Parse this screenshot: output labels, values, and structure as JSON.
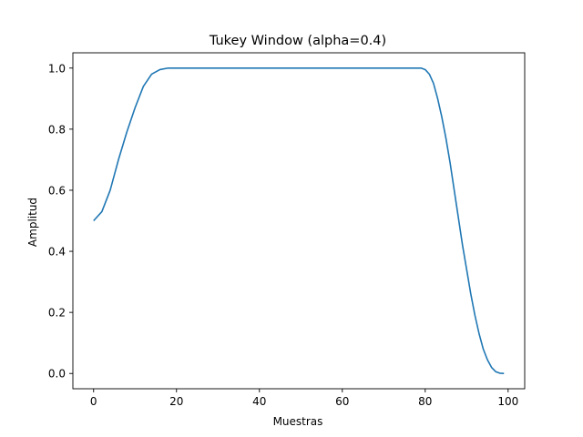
{
  "chart_data": {
    "type": "line",
    "title": "Tukey Window (alpha=0.4)",
    "xlabel": "Muestras",
    "ylabel": "Amplitud",
    "xlim": [
      -5,
      104
    ],
    "ylim": [
      -0.05,
      1.05
    ],
    "x_ticks": [
      0,
      20,
      40,
      60,
      80,
      100
    ],
    "x_tick_labels": [
      "0",
      "20",
      "40",
      "60",
      "80",
      "100"
    ],
    "y_ticks": [
      0.0,
      0.2,
      0.4,
      0.6,
      0.8,
      1.0
    ],
    "y_tick_labels": [
      "0.0",
      "0.2",
      "0.4",
      "0.6",
      "0.8",
      "1.0"
    ],
    "grid": false,
    "legend": "none",
    "series": [
      {
        "color": "#1f77b4",
        "x": [
          0,
          2,
          4,
          6,
          8,
          10,
          12,
          14,
          16,
          18,
          19,
          20,
          30,
          40,
          50,
          60,
          70,
          79,
          80,
          81,
          82,
          83,
          84,
          85,
          86,
          87,
          88,
          89,
          90,
          91,
          92,
          93,
          94,
          95,
          96,
          97,
          98,
          99
        ],
        "y": [
          0.5,
          0.53,
          0.6,
          0.7,
          0.79,
          0.87,
          0.94,
          0.98,
          0.995,
          1.0,
          1.0,
          1.0,
          1.0,
          1.0,
          1.0,
          1.0,
          1.0,
          1.0,
          0.995,
          0.98,
          0.95,
          0.9,
          0.84,
          0.77,
          0.69,
          0.6,
          0.51,
          0.42,
          0.34,
          0.26,
          0.19,
          0.13,
          0.08,
          0.045,
          0.02,
          0.006,
          0.001,
          0.0
        ]
      }
    ]
  }
}
